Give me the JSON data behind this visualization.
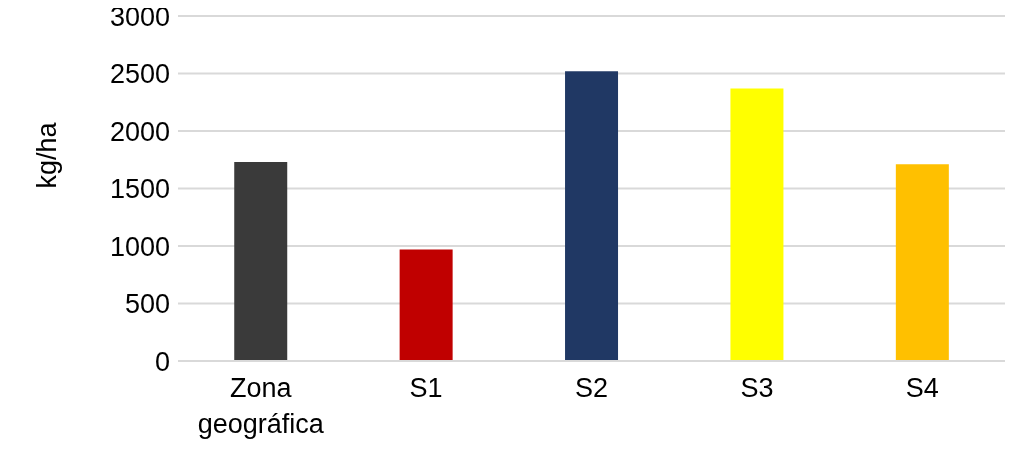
{
  "chart_data": {
    "type": "bar",
    "ylabel": "kg/ha",
    "categories": [
      "Zona geográfica",
      "S1",
      "S2",
      "S3",
      "S4"
    ],
    "values": [
      1730,
      970,
      2520,
      2370,
      1710
    ],
    "colors": [
      "#3a3a3a",
      "#c00000",
      "#203864",
      "#ffff00",
      "#ffc000"
    ],
    "ylim": [
      0,
      3000
    ],
    "yticks": [
      0,
      500,
      1000,
      1500,
      2000,
      2500,
      3000
    ],
    "grid": "y"
  }
}
